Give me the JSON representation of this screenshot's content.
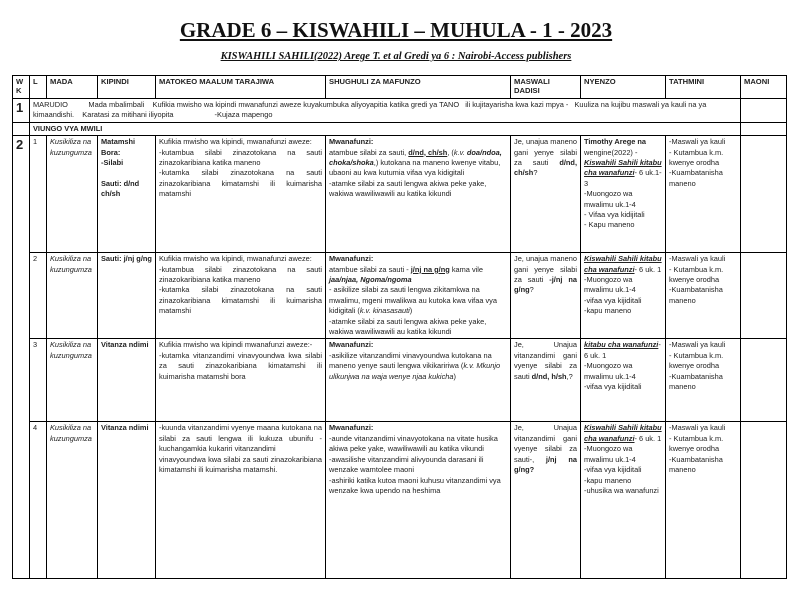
{
  "title": "GRADE 6 – KISWAHILI  – MUHULA - 1   - 2023",
  "subtitle": "KISWAHILI SAHILI(2022) Arege T. et al Gredi ya 6 : Nairobi-Access publishers",
  "columns": [
    "W K",
    "L",
    "MADA",
    "KIPINDI",
    "MATOKEO MAALUM TARAJIWA",
    "SHUGHULI ZA MAFUNZO",
    "MASWALI DADISI",
    "NYENZO",
    "TATHMINI",
    "MAONI"
  ],
  "week1": {
    "wk": "1",
    "text": "MARUDIO          Mada mbalimbali    Kufikia mwisho wa kipindi mwanafunzi aweze kuyakumbuka aliyoyapitia katika gredi ya TANO   ili kujitayarisha kwa kazi mpya -   Kuuliza na kujibu maswali ya kauli na ya kimaandishi.    Karatasi za mitihani iliyopita                    -Kujaza mapengo"
  },
  "section": "VIUNGO VYA MWILI",
  "week2": {
    "wk": "2",
    "lessons": [
      {
        "l": "1",
        "mada": [
          [
            [
              "Kusikiliza na kuzungumza",
              "i"
            ]
          ]
        ],
        "kipindi": [
          [
            [
              "Matamshi Bora:",
              "b"
            ]
          ],
          [
            [
              "-Silabi",
              "b"
            ]
          ],
          [
            ""
          ],
          [
            [
              "Sauti: d/nd ch/sh",
              "b"
            ]
          ]
        ],
        "matokeo": [
          [
            "Kufikia mwisho wa kipindi, mwanafunzi aweze:"
          ],
          [
            "-kutambua silabi zinazotokana na sauti zinazokaribiana katika maneno"
          ],
          [
            "-kutamka silabi zinazotokana na sauti zinazokaribiana kimatamshi ili kuimarisha matamshi"
          ]
        ],
        "shughuli": [
          [
            [
              "Mwanafunzi:",
              "b"
            ]
          ],
          [
            "atambue silabi za sauti, ",
            [
              "d/nd, ch/sh",
              "bu"
            ],
            ", (",
            [
              "k.v.",
              "i"
            ],
            " ",
            [
              "doa/ndoa, choka/shoka",
              "bi"
            ],
            ",) kutokana na maneno kwenye vitabu, ubaoni au kwa kutumia vifaa vya kidigitali"
          ],
          [
            " -atamke silabi za sauti lengwa akiwa peke yake, wakiwa wawiliwawili au katika kikundi"
          ]
        ],
        "maswali": [
          [
            "Je, unajua maneno gani yenye silabi za sauti ",
            [
              "d/nd, ch/sh",
              "b"
            ],
            "?"
          ]
        ],
        "nyenzo": [
          [
            [
              "Timothy Arege na",
              "b"
            ],
            " wengine(2022) - ",
            [
              "Kiswahili Sahili kitabu cha wanafunzi",
              "biu"
            ],
            "- 6 uk.1-3"
          ],
          [
            "-Muongozo wa mwalimu uk.1-4"
          ],
          [
            "- Vifaa vya kidijitali"
          ],
          [
            "- Kapu maneno"
          ]
        ],
        "tathmini": [
          [
            "-Maswali ya kauli"
          ],
          [
            "- Kutambua k.m. kwenye orodha"
          ],
          [
            "-Kuambatanisha maneno"
          ]
        ]
      },
      {
        "l": "2",
        "mada": [
          [
            [
              "Kusikiliza na kuzungumza",
              "i"
            ]
          ]
        ],
        "kipindi": [
          [
            [
              "Sauti: j/nj g/ng",
              "b"
            ]
          ]
        ],
        "matokeo": [
          [
            "Kufikia mwisho wa kipindi, mwanafunzi aweze:"
          ],
          [
            "-kutambua silabi zinazotokana na sauti zinazokaribiana katika maneno"
          ],
          [
            "-kutamka silabi zinazotokana na sauti zinazokaribiana kimatamshi ili kuimarisha matamshi"
          ]
        ],
        "shughuli": [
          [
            [
              "Mwanafunzi:",
              "b"
            ]
          ],
          [
            "atambue silabi za sauti - ",
            [
              "j/nj na g/ng",
              "bu"
            ],
            " kama vile ",
            [
              "jaa/njaa, Ngoma/ngoma",
              "bi"
            ]
          ],
          [
            "- asikilize silabi za sauti lengwa zikitamkwa na mwalimu, mgeni mwalikwa au kutoka kwa vifaa vya kidigitali (",
            [
              "k.v. kinasasauti",
              "i"
            ],
            ")"
          ],
          [
            "-atamke silabi za sauti lengwa akiwa peke yake, wakiwa wawiliwawili au katika kikundi"
          ]
        ],
        "maswali": [
          [
            "Je, unajua maneno gani yenye silabi za sauti ",
            [
              "-j/nj na g/ng",
              "b"
            ],
            "?"
          ]
        ],
        "nyenzo": [
          [
            [
              "Kiswahili Sahili kitabu cha wanafunzi",
              "biu"
            ],
            "- 6 uk. 1"
          ],
          [
            "-Muongozo wa mwalimu uk.1-4"
          ],
          [
            "-vifaa vya kijiditali"
          ],
          [
            "-kapu maneno"
          ]
        ],
        "tathmini": [
          [
            "-Maswali ya kauli"
          ],
          [
            "- Kutambua k.m. kwenye orodha"
          ],
          [
            "-Kuambatanisha maneno"
          ]
        ]
      },
      {
        "l": "3",
        "mada": [
          [
            [
              "Kusikiliza na kuzungumza",
              "i"
            ]
          ]
        ],
        "kipindi": [
          [
            [
              "Vitanza ndimi",
              "b"
            ]
          ]
        ],
        "matokeo": [
          [
            "Kufikia mwisho wa kipindi mwanafunzi aweze:-"
          ],
          [
            "-kutamka vitanzandimi vinavyoundwa kwa silabi za sauti zinazokaribiana kimatamshi ili kuimarisha matamshi bora"
          ]
        ],
        "shughuli": [
          [
            [
              "Mwanafunzi:",
              "b"
            ]
          ],
          [
            "-asikilize vitanzandimi vinavyoundwa kutokana na maneno yenye sauti lengwa vikikaririwa (",
            [
              "k.v. Mkunjo ulikunjwa na waja wenye njaa kukicha",
              "i"
            ],
            ")"
          ]
        ],
        "maswali": [
          [
            "Je, Unajua vitanzandimi gani vyenye silabi za sauti ",
            [
              "d/nd, h/sh",
              "b"
            ],
            ",?"
          ]
        ],
        "nyenzo": [
          [
            [
              "kitabu cha wanafunzi",
              "biu"
            ],
            "- 6 uk. 1"
          ],
          [
            "-Muongozo wa mwalimu uk.1-4"
          ],
          [
            "-vifaa vya kijiditali"
          ]
        ],
        "tathmini": [
          [
            "-Maswali ya kauli"
          ],
          [
            "- Kutambua k.m. kwenye orodha"
          ],
          [
            "-Kuambatanisha maneno"
          ]
        ]
      },
      {
        "l": "4",
        "mada": [
          [
            [
              "Kusikiliza na kuzungumza",
              "i"
            ]
          ]
        ],
        "kipindi": [
          [
            [
              "Vitanza ndimi",
              "b"
            ]
          ]
        ],
        "matokeo": [
          [
            "-kuunda vitanzandimi vyenye maana kutokana na silabi za sauti lengwa ili kukuza ubunifu -kuchangamkia kukariri vitanzandimi"
          ],
          [
            "vinavyoundwa kwa silabi za sauti zinazokaribiana kimatamshi ili kuimarisha matamshi."
          ]
        ],
        "shughuli": [
          [
            [
              "Mwanafunzi:",
              "b"
            ]
          ],
          [
            "-aunde vitanzandimi vinavyotokana na vitate husika akiwa peke yake, wawiliwawili au katika vikundi"
          ],
          [
            "-awasilishe vitanzandimi alivyounda darasani ili wenzake wamtolee maoni"
          ],
          [
            "-ashiriki katika kutoa maoni kuhusu vitanzandimi vya wenzake kwa upendo na heshima"
          ]
        ],
        "maswali": [
          [
            "Je, Unajua vitanzandimi gani vyenye silabi za sauti-, ",
            [
              "j/nj na g/ng?",
              "b"
            ]
          ]
        ],
        "nyenzo": [
          [
            [
              "Kiswahili Sahili kitabu cha wanafunzi",
              "biu"
            ],
            "- 6 uk. 1"
          ],
          [
            "-Muongozo wa mwalimu uk.1-4"
          ],
          [
            "-vifaa vya kijiditali"
          ],
          [
            "-kapu maneno"
          ],
          [
            "-uhusika wa wanafunzi"
          ]
        ],
        "tathmini": [
          [
            "-Maswali ya kauli"
          ],
          [
            "- Kutambua k.m. kwenye orodha"
          ],
          [
            "-Kuambatanisha maneno"
          ]
        ]
      }
    ]
  }
}
